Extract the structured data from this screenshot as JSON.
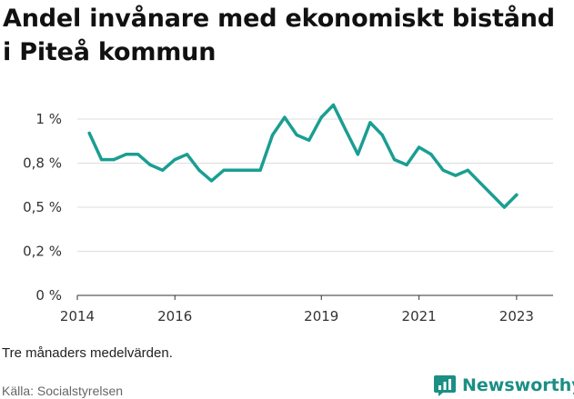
{
  "title": "Andel invånare med ekonomiskt bistånd i Piteå kommun",
  "note": "Tre månaders medelvärden.",
  "source": "Källa: Socialstyrelsen",
  "brand": "Newsworthy",
  "colors": {
    "line": "#1a9e92",
    "grid": "#dddddd",
    "axis": "#333333",
    "brand": "#1b8f84"
  },
  "chart_data": {
    "type": "line",
    "title": "Andel invånare med ekonomiskt bistånd i Piteå kommun",
    "xlabel": "",
    "ylabel": "",
    "xlim": [
      "2014-01-01",
      "2023-10-01"
    ],
    "ylim": [
      0,
      1.0
    ],
    "grid": true,
    "yticks": [
      {
        "value": 0,
        "label": "0 %"
      },
      {
        "value": 0.25,
        "label": "0,2 %"
      },
      {
        "value": 0.5,
        "label": "0,5 %"
      },
      {
        "value": 0.75,
        "label": "0,8 %"
      },
      {
        "value": 1.0,
        "label": "1 %"
      }
    ],
    "xticks": [
      {
        "value": "2014-01-01",
        "label": "2014"
      },
      {
        "value": "2016-01-01",
        "label": "2016"
      },
      {
        "value": "2019-01-01",
        "label": "2019"
      },
      {
        "value": "2021-01-01",
        "label": "2021"
      },
      {
        "value": "2023-01-01",
        "label": "2023"
      }
    ],
    "series": [
      {
        "points": [
          {
            "x": "2014-04-01",
            "y": 0.92
          },
          {
            "x": "2014-07-01",
            "y": 0.77
          },
          {
            "x": "2014-10-01",
            "y": 0.77
          },
          {
            "x": "2015-01-01",
            "y": 0.8
          },
          {
            "x": "2015-04-01",
            "y": 0.8
          },
          {
            "x": "2015-07-01",
            "y": 0.74
          },
          {
            "x": "2015-10-01",
            "y": 0.71
          },
          {
            "x": "2016-01-01",
            "y": 0.77
          },
          {
            "x": "2016-04-01",
            "y": 0.8
          },
          {
            "x": "2016-07-01",
            "y": 0.71
          },
          {
            "x": "2016-10-01",
            "y": 0.65
          },
          {
            "x": "2017-01-01",
            "y": 0.71
          },
          {
            "x": "2017-04-01",
            "y": 0.71
          },
          {
            "x": "2017-07-01",
            "y": 0.71
          },
          {
            "x": "2017-10-01",
            "y": 0.71
          },
          {
            "x": "2018-01-01",
            "y": 0.91
          },
          {
            "x": "2018-04-01",
            "y": 1.01
          },
          {
            "x": "2018-07-01",
            "y": 0.91
          },
          {
            "x": "2018-10-01",
            "y": 0.88
          },
          {
            "x": "2019-01-01",
            "y": 1.01
          },
          {
            "x": "2019-04-01",
            "y": 1.08
          },
          {
            "x": "2019-07-01",
            "y": 0.94
          },
          {
            "x": "2019-10-01",
            "y": 0.8
          },
          {
            "x": "2020-01-01",
            "y": 0.98
          },
          {
            "x": "2020-04-01",
            "y": 0.91
          },
          {
            "x": "2020-07-01",
            "y": 0.77
          },
          {
            "x": "2020-10-01",
            "y": 0.74
          },
          {
            "x": "2021-01-01",
            "y": 0.84
          },
          {
            "x": "2021-04-01",
            "y": 0.8
          },
          {
            "x": "2021-07-01",
            "y": 0.71
          },
          {
            "x": "2021-10-01",
            "y": 0.68
          },
          {
            "x": "2022-01-01",
            "y": 0.71
          },
          {
            "x": "2022-04-01",
            "y": 0.64
          },
          {
            "x": "2022-07-01",
            "y": 0.57
          },
          {
            "x": "2022-10-01",
            "y": 0.5
          },
          {
            "x": "2023-01-01",
            "y": 0.57
          }
        ]
      }
    ]
  }
}
